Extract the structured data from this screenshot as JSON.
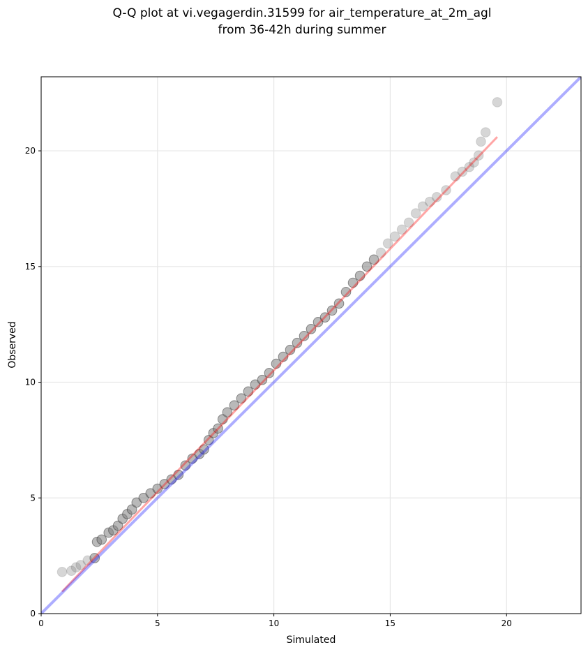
{
  "chart_data": {
    "type": "scatter",
    "title": "Q-Q plot at vi.vegagerdin.31599 for air_temperature_at_2m_agl",
    "subtitle": "from 36-42h during summer",
    "xlabel": "Simulated",
    "ylabel": "Observed",
    "xlim": [
      0,
      23.2
    ],
    "ylim": [
      0,
      23.2
    ],
    "xticks": [
      0,
      5,
      10,
      15,
      20
    ],
    "yticks": [
      0,
      5,
      10,
      15,
      20
    ],
    "grid": true,
    "series": [
      {
        "kind": "quantile-points",
        "color": "#808080",
        "x": [
          0.9,
          1.3,
          1.5,
          1.7,
          2.0,
          2.3,
          2.4,
          2.6,
          2.9,
          3.1,
          3.3,
          3.5,
          3.7,
          3.9,
          4.1,
          4.4,
          4.7,
          5.0,
          5.3,
          5.6,
          5.9,
          6.2,
          6.5,
          6.8,
          7.0,
          7.2,
          7.4,
          7.6,
          7.8,
          8.0,
          8.3,
          8.6,
          8.9,
          9.2,
          9.5,
          9.8,
          10.1,
          10.4,
          10.7,
          11.0,
          11.3,
          11.6,
          11.9,
          12.2,
          12.5,
          12.8,
          13.1,
          13.4,
          13.7,
          14.0,
          14.3,
          14.6,
          14.9,
          15.2,
          15.5,
          15.8,
          16.1,
          16.4,
          16.7,
          17.0,
          17.4,
          17.8,
          18.1,
          18.4,
          18.6,
          18.8,
          18.9,
          19.1,
          19.6
        ],
        "y": [
          1.8,
          1.85,
          2.0,
          2.1,
          2.3,
          2.4,
          3.1,
          3.2,
          3.5,
          3.6,
          3.8,
          4.1,
          4.3,
          4.5,
          4.8,
          5.0,
          5.2,
          5.4,
          5.6,
          5.8,
          6.0,
          6.4,
          6.7,
          6.9,
          7.1,
          7.5,
          7.8,
          8.0,
          8.4,
          8.7,
          9.0,
          9.3,
          9.6,
          9.9,
          10.1,
          10.4,
          10.8,
          11.1,
          11.4,
          11.7,
          12.0,
          12.3,
          12.6,
          12.8,
          13.1,
          13.4,
          13.9,
          14.3,
          14.6,
          15.0,
          15.3,
          15.6,
          16.0,
          16.3,
          16.6,
          16.9,
          17.3,
          17.6,
          17.8,
          18.0,
          18.3,
          18.9,
          19.1,
          19.3,
          19.5,
          19.8,
          20.4,
          20.8,
          22.1
        ]
      },
      {
        "kind": "fit-line",
        "color": "#ff0000",
        "x": [
          0.9,
          19.6
        ],
        "y": [
          0.95,
          20.6
        ]
      },
      {
        "kind": "identity-line",
        "color": "#0000ff",
        "x": [
          0,
          23.2
        ],
        "y": [
          0,
          23.2
        ]
      }
    ]
  }
}
